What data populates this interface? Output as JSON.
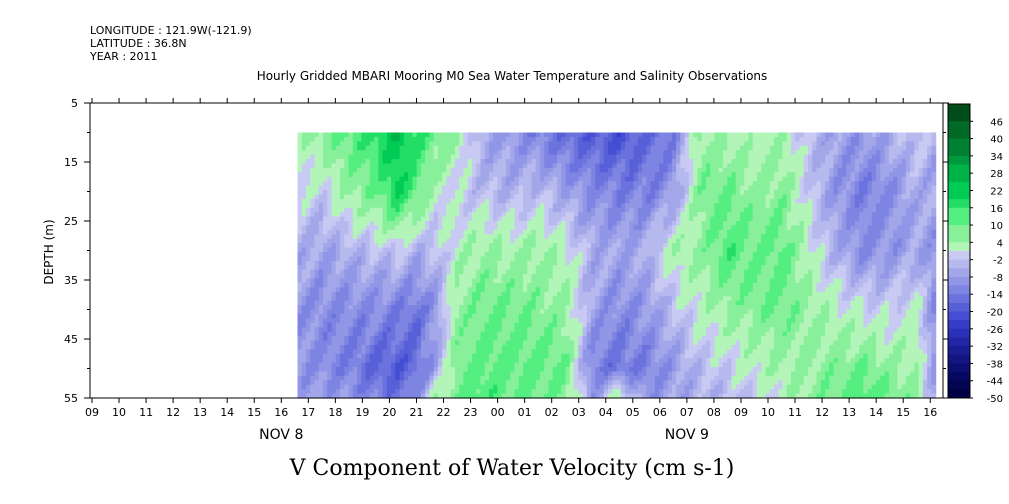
{
  "header": {
    "longitude": "LONGITUDE : 121.9W(-121.9)",
    "latitude": "LATITUDE : 36.8N",
    "year": "YEAR : 2011",
    "title": "Hourly Gridded MBARI Mooring M0 Sea Water Temperature and Salinity Observations"
  },
  "chart_data": {
    "type": "heatmap",
    "title": "V Component of Water Velocity (cm s-1)",
    "ylabel": "DEPTH (m)",
    "y_ticks": [
      "5",
      "15",
      "25",
      "35",
      "45",
      "55"
    ],
    "y_tick_values": [
      5,
      15,
      25,
      35,
      45,
      55
    ],
    "ylim": [
      55,
      5
    ],
    "x_ticks": [
      "09",
      "10",
      "11",
      "12",
      "13",
      "14",
      "15",
      "16",
      "17",
      "18",
      "19",
      "20",
      "21",
      "22",
      "23",
      "00",
      "01",
      "02",
      "03",
      "04",
      "05",
      "06",
      "07",
      "08",
      "09",
      "10",
      "11",
      "12",
      "13",
      "14",
      "15",
      "16"
    ],
    "date_labels": [
      {
        "label": "NOV  8",
        "tick": "16"
      },
      {
        "label": "NOV  9",
        "tick": "07"
      }
    ],
    "data_start_hour": 16.6,
    "depth_range": [
      10,
      55
    ],
    "colorbar": {
      "labels": [
        "46",
        "40",
        "34",
        "28",
        "22",
        "16",
        "10",
        "4",
        "-2",
        "-8",
        "-14",
        "-20",
        "-26",
        "-32",
        "-38",
        "-44",
        "-50"
      ],
      "min": -50,
      "max": 52,
      "step": 3,
      "colors_high": [
        "#004d1a",
        "#006a26",
        "#008033",
        "#00993d",
        "#00b347",
        "#00cc55",
        "#22dd66",
        "#55ee80",
        "#88f09a",
        "#b3f5b8"
      ],
      "colors_low": [
        "#c8caf4",
        "#b6b9ee",
        "#a3a7ea",
        "#9196e6",
        "#7e84e2",
        "#6b72dd",
        "#5860d8",
        "#454ed2",
        "#343cc8",
        "#2a30b8",
        "#2226a6",
        "#1a1d94",
        "#131583",
        "#0c0e72",
        "#070862",
        "#030452",
        "#000044"
      ]
    },
    "field": {
      "hours": [
        16.6,
        17.5,
        18.5,
        19.5,
        20.3,
        21,
        21.7,
        22.5,
        23.5,
        24.5,
        25.5,
        26.5,
        27.5,
        28.5,
        29.5,
        30.5,
        31.5,
        32.5,
        33.5,
        34.5,
        35.5,
        36.5,
        37.5,
        38.5,
        39.5,
        40.2
      ],
      "depths": [
        10,
        20,
        30,
        40,
        50,
        55
      ],
      "v": [
        [
          2,
          0,
          -6,
          -10,
          -10,
          -8
        ],
        [
          8,
          -2,
          -8,
          -12,
          -12,
          -9
        ],
        [
          12,
          6,
          -6,
          -12,
          -14,
          -10
        ],
        [
          18,
          10,
          -4,
          -12,
          -18,
          -14
        ],
        [
          24,
          20,
          -2,
          -14,
          -20,
          -16
        ],
        [
          16,
          12,
          -6,
          -16,
          -18,
          -12
        ],
        [
          10,
          2,
          -4,
          -10,
          -8,
          4
        ],
        [
          6,
          -2,
          2,
          6,
          8,
          10
        ],
        [
          -8,
          -4,
          6,
          10,
          12,
          14
        ],
        [
          -10,
          -6,
          4,
          10,
          12,
          10
        ],
        [
          -14,
          -4,
          6,
          8,
          12,
          10
        ],
        [
          -18,
          -8,
          2,
          6,
          10,
          8
        ],
        [
          -20,
          -12,
          -6,
          -8,
          -14,
          -10
        ],
        [
          -22,
          -14,
          -8,
          -12,
          -16,
          4
        ],
        [
          -18,
          -14,
          -6,
          -10,
          -14,
          -10
        ],
        [
          -14,
          -10,
          4,
          -4,
          -10,
          -8
        ],
        [
          6,
          8,
          6,
          2,
          -4,
          -6
        ],
        [
          4,
          10,
          14,
          6,
          -2,
          -4
        ],
        [
          2,
          6,
          10,
          8,
          2,
          -2
        ],
        [
          4,
          8,
          12,
          10,
          4,
          2
        ],
        [
          -4,
          -2,
          2,
          6,
          6,
          6
        ],
        [
          -8,
          -10,
          -6,
          2,
          8,
          10
        ],
        [
          -10,
          -14,
          -12,
          0,
          10,
          14
        ],
        [
          -6,
          -12,
          -10,
          -2,
          6,
          10
        ],
        [
          -2,
          -6,
          -8,
          2,
          4,
          6
        ],
        [
          -6,
          -8,
          -10,
          -12,
          -10,
          -8
        ]
      ]
    }
  }
}
